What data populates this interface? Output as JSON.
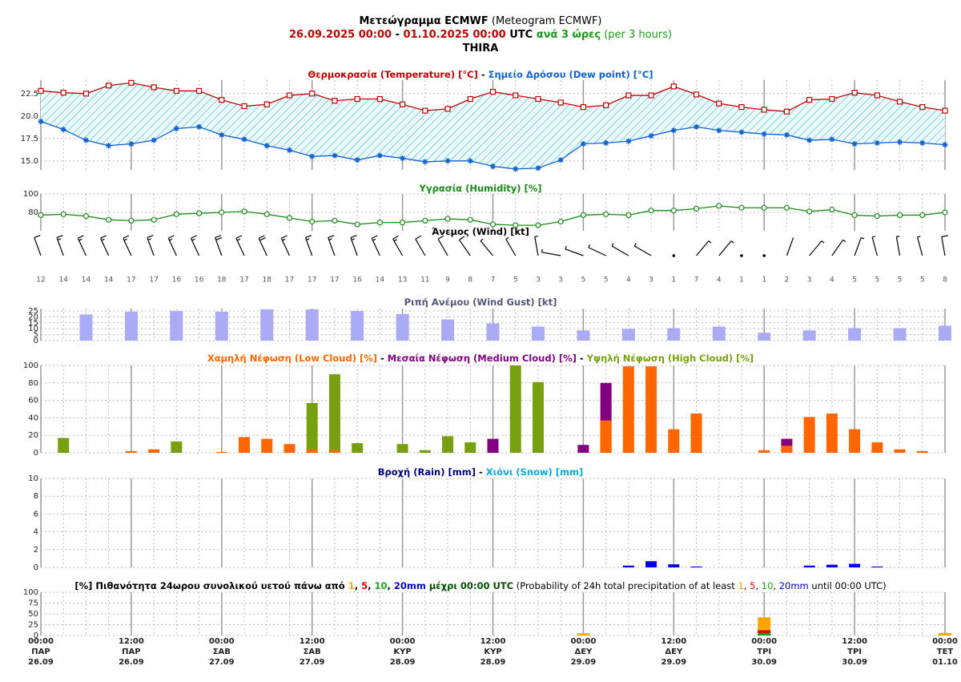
{
  "header": {
    "lines": [
      {
        "parts": [
          {
            "text": "Μετεώγραμμα ECMWF",
            "color": "#000",
            "bold": true
          },
          {
            "text": " (Meteogram ECMWF)",
            "color": "#000",
            "bold": false
          }
        ]
      },
      {
        "parts": [
          {
            "text": "26.09.2025 00:00",
            "color": "#c00000",
            "bold": true
          },
          {
            "text": " - ",
            "color": "#000",
            "bold": true
          },
          {
            "text": "01.10.2025 00:00",
            "color": "#c00000",
            "bold": true
          },
          {
            "text": " UTC",
            "color": "#000",
            "bold": true
          },
          {
            "text": " ανά 3 ώρες",
            "color": "#1a9a1a",
            "bold": true
          },
          {
            "text": " (per 3 hours)",
            "color": "#1a9a1a",
            "bold": false
          }
        ]
      },
      {
        "parts": [
          {
            "text": "THIRA",
            "color": "#000",
            "bold": true
          }
        ]
      }
    ]
  },
  "x_axis": {
    "times": [
      "00:00",
      "12:00",
      "00:00",
      "12:00",
      "00:00",
      "12:00",
      "00:00",
      "12:00",
      "00:00",
      "12:00",
      "00:00"
    ],
    "days": [
      "ΠΑΡ",
      "ΠΑΡ",
      "ΣΑΒ",
      "ΣΑΒ",
      "ΚΥΡ",
      "ΚΥΡ",
      "ΔΕΥ",
      "ΔΕΥ",
      "ΤΡΙ",
      "ΤΡΙ",
      "ΤΕΤ"
    ],
    "dates": [
      "26.09",
      "26.09",
      "27.09",
      "27.09",
      "28.09",
      "28.09",
      "29.09",
      "29.09",
      "30.09",
      "30.09",
      "01.10"
    ]
  },
  "chart_data": [
    {
      "type": "line",
      "title_parts": [
        {
          "text": "Θερμοκρασία (Temperature) [°C]",
          "color": "#c00000",
          "bold": true
        },
        {
          "text": " - ",
          "color": "#000",
          "bold": true
        },
        {
          "text": "Σημείο Δρόσου (Dew point) [°C]",
          "color": "#1060d0",
          "bold": true
        }
      ],
      "ylim": [
        14,
        24
      ],
      "yticks": [
        {
          "value": 15,
          "label": "15.0"
        },
        17.5,
        {
          "value": 20,
          "label": "20.0"
        },
        22.5
      ],
      "fill_between": true,
      "series": [
        {
          "color": "#c00000",
          "marker": "square",
          "values": [
            22.8,
            22.6,
            22.5,
            23.4,
            23.7,
            23.2,
            22.8,
            22.8,
            21.8,
            21.1,
            21.3,
            22.3,
            22.5,
            21.7,
            21.9,
            21.9,
            21.3,
            20.6,
            20.8,
            21.9,
            22.7,
            22.3,
            21.9,
            21.5,
            21.0,
            21.2,
            22.3,
            22.3,
            23.3,
            22.4,
            21.4,
            21.0,
            20.7,
            20.5,
            21.8,
            21.9,
            22.6,
            22.3,
            21.6,
            21.0,
            20.6
          ]
        },
        {
          "color": "#1060d0",
          "marker": "star",
          "values": [
            19.4,
            18.5,
            17.3,
            16.7,
            16.9,
            17.3,
            18.6,
            18.8,
            17.9,
            17.4,
            16.7,
            16.2,
            15.5,
            15.6,
            15.1,
            15.6,
            15.3,
            14.9,
            15.0,
            15.0,
            14.4,
            14.1,
            14.2,
            15.1,
            16.9,
            17.0,
            17.2,
            17.8,
            18.4,
            18.8,
            18.4,
            18.2,
            18.0,
            17.9,
            17.3,
            17.4,
            16.9,
            17.0,
            17.1,
            17.0,
            16.8
          ]
        }
      ]
    },
    {
      "type": "line",
      "title_parts": [
        {
          "text": "Υγρασία (Humidity) [%]",
          "color": "#1a8a1a",
          "bold": true
        }
      ],
      "ylim": [
        60,
        100
      ],
      "yticks": [
        80,
        100
      ],
      "series": [
        {
          "color": "#1a8a1a",
          "marker": "circle",
          "values": [
            77,
            78,
            76,
            72,
            71,
            72,
            78,
            79,
            80,
            81,
            78,
            74,
            70,
            71,
            67,
            69,
            69,
            71,
            73,
            72,
            67,
            66,
            66,
            70,
            77,
            78,
            77,
            82,
            82,
            84,
            87,
            85,
            85,
            85,
            81,
            83,
            77,
            76,
            77,
            77,
            80
          ]
        }
      ]
    },
    {
      "type": "wind",
      "title_parts": [
        {
          "text": "Άνεμος (Wind) [kt]",
          "color": "#000",
          "bold": true
        }
      ],
      "speed": [
        12,
        14,
        14,
        14,
        17,
        17,
        16,
        16,
        18,
        17,
        18,
        17,
        17,
        17,
        16,
        14,
        13,
        11,
        9,
        8,
        7,
        5,
        3,
        3,
        5,
        5,
        4,
        3,
        1,
        7,
        4,
        1,
        1,
        2,
        3,
        4,
        5,
        5,
        5,
        5,
        8
      ],
      "direction": [
        340,
        340,
        335,
        335,
        335,
        340,
        335,
        335,
        340,
        335,
        335,
        335,
        340,
        340,
        340,
        335,
        330,
        330,
        330,
        325,
        320,
        330,
        350,
        280,
        290,
        295,
        300,
        300,
        300,
        40,
        40,
        0,
        0,
        20,
        40,
        35,
        20,
        345,
        350,
        345,
        350
      ]
    },
    {
      "type": "bar",
      "title_parts": [
        {
          "text": "Ριπή Ανέμου (Wind Gust) [kt]",
          "color": "#555577",
          "bold": true
        }
      ],
      "ylim": [
        0,
        27
      ],
      "yticks": [
        0,
        5,
        10,
        15,
        20,
        25
      ],
      "series": [
        {
          "color": "#aaaaf5",
          "values": [
            null,
            null,
            22,
            null,
            24.3,
            null,
            25,
            null,
            24.3,
            null,
            26.3,
            null,
            26.3,
            null,
            25,
            null,
            22.4,
            null,
            17.8,
            null,
            14.5,
            null,
            11.8,
            null,
            8.6,
            null,
            9.9,
            null,
            10.5,
            null,
            11.8,
            null,
            6.6,
            null,
            8.6,
            null,
            10.5,
            null,
            10.5,
            null,
            12.5
          ]
        }
      ]
    },
    {
      "type": "bar",
      "title_parts": [
        {
          "text": "Χαμηλή Νέφωση (Low Cloud) [%]",
          "color": "#ff6600",
          "bold": true
        },
        {
          "text": " - ",
          "color": "#000",
          "bold": true
        },
        {
          "text": "Μεσαία Νέφωση (Medium Cloud) [%]",
          "color": "#800080",
          "bold": true
        },
        {
          "text": " - ",
          "color": "#000",
          "bold": true
        },
        {
          "text": "Υψηλή Νέφωση (High Cloud) [%]",
          "color": "#77a010",
          "bold": true
        }
      ],
      "ylim": [
        0,
        100
      ],
      "yticks": [
        0,
        20,
        40,
        60,
        80,
        100
      ],
      "series": [
        {
          "color": "#77a010",
          "values": [
            0,
            17,
            0,
            0,
            0,
            0,
            13,
            0,
            0,
            0,
            0,
            0,
            57,
            90,
            11,
            0,
            10,
            3,
            19,
            12,
            0,
            100,
            81,
            0,
            0,
            0,
            0,
            0,
            0,
            0,
            0,
            0,
            0,
            0,
            0,
            0,
            0,
            0,
            0,
            0,
            0
          ]
        },
        {
          "color": "#800080",
          "values": [
            0,
            0,
            0,
            0,
            0,
            0,
            0,
            0,
            0,
            0,
            0,
            0,
            0,
            0,
            0,
            0,
            0,
            0,
            0,
            0,
            16,
            0,
            0,
            0,
            9,
            80,
            0,
            0,
            0,
            0,
            0,
            0,
            0,
            16,
            0,
            0,
            0,
            0,
            0,
            0,
            0
          ]
        },
        {
          "color": "#ff6600",
          "values": [
            0,
            0,
            0,
            0,
            2,
            4,
            0,
            0,
            1,
            18,
            16,
            10,
            4,
            3,
            0,
            0,
            0,
            0,
            0,
            0,
            0,
            0,
            0,
            0,
            0,
            37,
            99,
            99,
            27,
            45,
            0,
            0,
            3,
            8,
            41,
            45,
            27,
            12,
            4,
            2,
            0
          ]
        }
      ]
    },
    {
      "type": "bar",
      "title_parts": [
        {
          "text": "Βροχή (Rain) [mm]",
          "color": "#000080",
          "bold": true
        },
        {
          "text": " - ",
          "color": "#000",
          "bold": true
        },
        {
          "text": "Χιόνι (Snow) [mm]",
          "color": "#00aadd",
          "bold": true
        }
      ],
      "ylim": [
        0,
        10
      ],
      "yticks": [
        0,
        2,
        4,
        6,
        8,
        10
      ],
      "series": [
        {
          "color": "#0000ee",
          "values": [
            0,
            0,
            0,
            0,
            0,
            0,
            0,
            0,
            0,
            0,
            0,
            0,
            0,
            0,
            0,
            0,
            0,
            0,
            0,
            0,
            0,
            0,
            0,
            0,
            0,
            0,
            0.2,
            0.7,
            0.35,
            0.1,
            0,
            0,
            0,
            0,
            0.2,
            0.3,
            0.4,
            0.1,
            0,
            0,
            0
          ]
        },
        {
          "color": "#00aadd",
          "values": [
            0,
            0,
            0,
            0,
            0,
            0,
            0,
            0,
            0,
            0,
            0,
            0,
            0,
            0,
            0,
            0,
            0,
            0,
            0,
            0,
            0,
            0,
            0,
            0,
            0,
            0,
            0,
            0,
            0,
            0,
            0,
            0,
            0,
            0,
            0,
            0,
            0,
            0,
            0,
            0,
            0
          ]
        }
      ]
    },
    {
      "type": "bar",
      "daily": true,
      "title_parts": [
        {
          "text": "[%] Πιθανότητα 24ωρου συνολικού υετού πάνω από ",
          "color": "#000",
          "bold": true
        },
        {
          "text": "1",
          "color": "#ffa500",
          "bold": true
        },
        {
          "text": ", ",
          "color": "#000",
          "bold": true
        },
        {
          "text": "5",
          "color": "#dd0000",
          "bold": true
        },
        {
          "text": ", ",
          "color": "#000",
          "bold": true
        },
        {
          "text": "10",
          "color": "#1aa01a",
          "bold": true
        },
        {
          "text": ", ",
          "color": "#000",
          "bold": true
        },
        {
          "text": "20mm",
          "color": "#0000cc",
          "bold": true
        },
        {
          "text": " μέχρι 00:00 UTC",
          "color": "#005000",
          "bold": true
        },
        {
          "text": " (Probability of 24h total precipitation of at least ",
          "color": "#000",
          "bold": false
        },
        {
          "text": "1",
          "color": "#ffa500",
          "bold": false
        },
        {
          "text": ", ",
          "color": "#000",
          "bold": false
        },
        {
          "text": "5",
          "color": "#dd0000",
          "bold": false
        },
        {
          "text": ", ",
          "color": "#000",
          "bold": false
        },
        {
          "text": "10",
          "color": "#1aa01a",
          "bold": false
        },
        {
          "text": ", ",
          "color": "#000",
          "bold": false
        },
        {
          "text": "20mm",
          "color": "#0000cc",
          "bold": false
        },
        {
          "text": " until 00:00 UTC)",
          "color": "#000",
          "bold": false
        }
      ],
      "ylim": [
        0,
        100
      ],
      "yticks": [
        0,
        25,
        50,
        75,
        100
      ],
      "series": [
        {
          "color": "#ffa500",
          "values": [
            0,
            0,
            0,
            5,
            42,
            6
          ]
        },
        {
          "color": "#dd0000",
          "values": [
            0,
            0,
            0,
            0,
            12,
            0
          ]
        },
        {
          "color": "#1aa01a",
          "values": [
            0,
            0,
            0,
            0,
            6,
            0
          ]
        },
        {
          "color": "#0000cc",
          "values": [
            0,
            0,
            0,
            0,
            0,
            0
          ]
        }
      ]
    }
  ]
}
